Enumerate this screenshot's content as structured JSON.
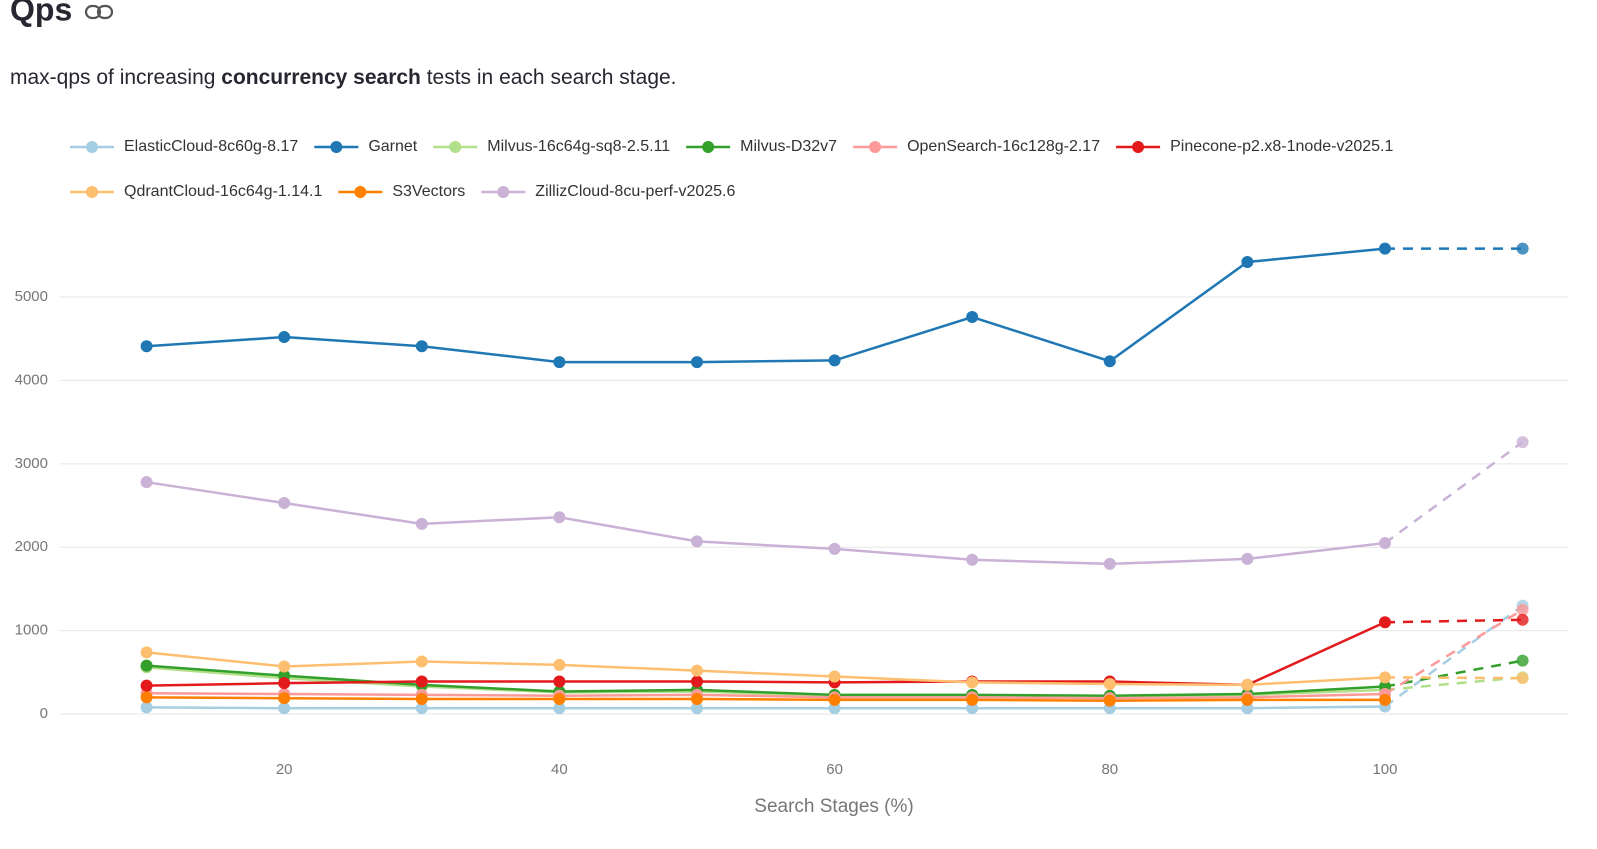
{
  "chart_data": {
    "type": "line",
    "title": "Qps",
    "subtitle": [
      {
        "text": "max-qps of increasing ",
        "bold": false
      },
      {
        "text": "concurrency search",
        "bold": true
      },
      {
        "text": " tests in each search stage.",
        "bold": false
      }
    ],
    "x_label": "Search Stages (%)",
    "x": [
      10,
      20,
      30,
      40,
      50,
      60,
      70,
      80,
      90,
      100,
      110
    ],
    "dashed_last_segment": true,
    "xlim": [
      3.7,
      113.3
    ],
    "xticks": [
      20,
      40,
      60,
      80,
      100
    ],
    "ylim": [
      -400,
      5800
    ],
    "yticks": [
      0,
      1000,
      2000,
      3000,
      4000,
      5000
    ],
    "grid": true,
    "legend": "top",
    "series": [
      {
        "name": "ElasticCloud-8c60g-8.17",
        "color": "#a6cee3",
        "values": [
          80,
          70,
          70,
          70,
          70,
          70,
          70,
          70,
          70,
          90,
          1300
        ]
      },
      {
        "name": "Garnet",
        "color": "#1f78b4",
        "values": [
          4410,
          4520,
          4410,
          4220,
          4220,
          4240,
          4760,
          4230,
          5420,
          5580,
          5580
        ]
      },
      {
        "name": "Milvus-16c64g-sq8-2.5.11",
        "color": "#b2df8a",
        "values": [
          560,
          430,
          330,
          260,
          270,
          220,
          220,
          210,
          230,
          290,
          440
        ]
      },
      {
        "name": "Milvus-D32v7",
        "color": "#33a02c",
        "values": [
          580,
          460,
          350,
          270,
          290,
          230,
          230,
          220,
          240,
          330,
          640
        ]
      },
      {
        "name": "OpenSearch-16c128g-2.17",
        "color": "#fb9a99",
        "values": [
          250,
          240,
          230,
          220,
          230,
          200,
          200,
          190,
          200,
          240,
          1250
        ]
      },
      {
        "name": "Pinecone-p2.x8-1node-v2025.1",
        "color": "#e31a1c",
        "values": [
          340,
          370,
          390,
          390,
          390,
          380,
          390,
          390,
          350,
          1100,
          1130
        ]
      },
      {
        "name": "QdrantCloud-16c64g-1.14.1",
        "color": "#fdbf6f",
        "values": [
          740,
          570,
          630,
          590,
          520,
          450,
          380,
          360,
          350,
          440,
          430
        ]
      },
      {
        "name": "S3Vectors",
        "color": "#ff7f00",
        "values": [
          200,
          190,
          180,
          180,
          180,
          170,
          170,
          160,
          170,
          170,
          null
        ]
      },
      {
        "name": "ZillizCloud-8cu-perf-v2025.6",
        "color": "#cab2d6",
        "values": [
          2780,
          2530,
          2280,
          2360,
          2070,
          1980,
          1850,
          1800,
          1860,
          2050,
          3260
        ]
      }
    ]
  }
}
